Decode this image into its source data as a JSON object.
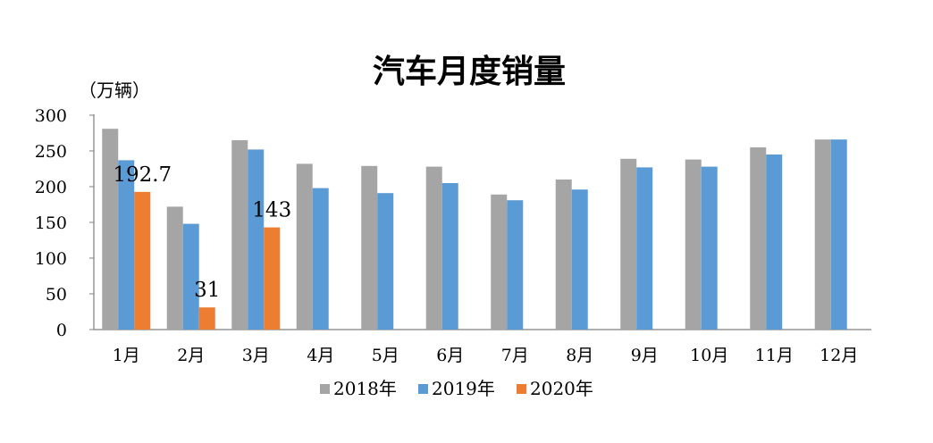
{
  "chart_data": {
    "type": "bar",
    "title": "汽车月度销量",
    "ylabel": "（万辆）",
    "xlabel": "",
    "categories": [
      "1月",
      "2月",
      "3月",
      "4月",
      "5月",
      "6月",
      "7月",
      "8月",
      "9月",
      "10月",
      "11月",
      "12月"
    ],
    "ylim": [
      0,
      300
    ],
    "yticks": [
      0,
      50,
      100,
      150,
      200,
      250,
      300
    ],
    "grid": false,
    "legend_position": "bottom",
    "series": [
      {
        "name": "2018年",
        "color": "#a5a5a5",
        "values": [
          281,
          172,
          265,
          232,
          229,
          228,
          189,
          210,
          239,
          238,
          255,
          266
        ]
      },
      {
        "name": "2019年",
        "color": "#5b9bd5",
        "values": [
          237,
          148,
          252,
          198,
          191,
          205,
          181,
          196,
          227,
          228,
          245,
          266
        ]
      },
      {
        "name": "2020年",
        "color": "#ed7d31",
        "values": [
          192.7,
          31,
          143,
          null,
          null,
          null,
          null,
          null,
          null,
          null,
          null,
          null
        ]
      }
    ],
    "data_labels": [
      {
        "series": "2020年",
        "category": "1月",
        "text": "192.7"
      },
      {
        "series": "2020年",
        "category": "2月",
        "text": "31"
      },
      {
        "series": "2020年",
        "category": "3月",
        "text": "143"
      }
    ]
  }
}
